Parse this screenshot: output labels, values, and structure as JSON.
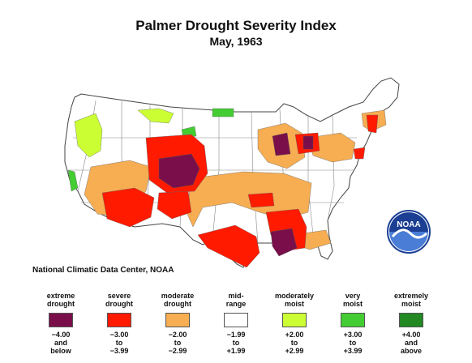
{
  "title": "Palmer Drought Severity Index",
  "subtitle": "May, 1963",
  "credit": "National Climatic Data Center, NOAA",
  "logo_text": "NOAA",
  "legend": [
    {
      "label_1": "extreme",
      "label_2": "drought",
      "range_1": "−4.00",
      "range_2": "and",
      "range_3": "below",
      "color": "#7a0e4a"
    },
    {
      "label_1": "severe",
      "label_2": "drought",
      "range_1": "−3.00",
      "range_2": "to",
      "range_3": "−3.99",
      "color": "#ff1a00"
    },
    {
      "label_1": "moderate",
      "label_2": "drought",
      "range_1": "−2.00",
      "range_2": "to",
      "range_3": "−2.99",
      "color": "#f7ad52"
    },
    {
      "label_1": "mid-",
      "label_2": "range",
      "range_1": "−1.99",
      "range_2": "to",
      "range_3": "+1.99",
      "color": "#ffffff"
    },
    {
      "label_1": "moderately",
      "label_2": "moist",
      "range_1": "+2.00",
      "range_2": "to",
      "range_3": "+2.99",
      "color": "#ccff33"
    },
    {
      "label_1": "very",
      "label_2": "moist",
      "range_1": "+3.00",
      "range_2": "to",
      "range_3": "+3.99",
      "color": "#44cc33"
    },
    {
      "label_1": "extremely",
      "label_2": "moist",
      "range_1": "+4.00",
      "range_2": "and",
      "range_3": "above",
      "color": "#228822"
    }
  ]
}
